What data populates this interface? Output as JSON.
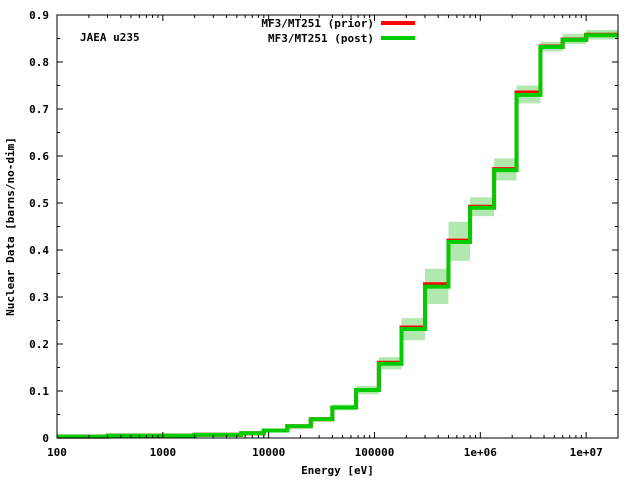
{
  "chart_data": {
    "type": "line",
    "step": true,
    "xscale": "log",
    "xlim": [
      100,
      20000000
    ],
    "ylim": [
      0,
      0.9
    ],
    "xlabel": "Energy [eV]",
    "ylabel": "Nuclear Data [barns/no-dim]",
    "annotation": "JAEA u235",
    "legend_position": "top-center",
    "grid": false,
    "x_ticks": [
      {
        "value": 100,
        "label": "100"
      },
      {
        "value": 1000,
        "label": "1000"
      },
      {
        "value": 10000,
        "label": "10000"
      },
      {
        "value": 100000,
        "label": "100000"
      },
      {
        "value": 1000000,
        "label": "1e+06"
      },
      {
        "value": 10000000,
        "label": "1e+07"
      }
    ],
    "y_ticks": [
      {
        "value": 0,
        "label": "0"
      },
      {
        "value": 0.1,
        "label": "0.1"
      },
      {
        "value": 0.2,
        "label": "0.2"
      },
      {
        "value": 0.3,
        "label": "0.3"
      },
      {
        "value": 0.4,
        "label": "0.4"
      },
      {
        "value": 0.5,
        "label": "0.5"
      },
      {
        "value": 0.6,
        "label": "0.6"
      },
      {
        "value": 0.7,
        "label": "0.7"
      },
      {
        "value": 0.8,
        "label": "0.8"
      },
      {
        "value": 0.9,
        "label": "0.9"
      }
    ],
    "bin_edges": [
      100,
      300,
      2000,
      5500,
      9000,
      15000,
      25000,
      40000,
      67000,
      110000,
      180000,
      300000,
      500000,
      800000,
      1350000,
      2200000,
      3700000,
      6000000,
      10000000,
      20000000
    ],
    "series": [
      {
        "name": "MF3/MT251 (prior)",
        "color": "#ff0000",
        "values": [
          0.003,
          0.005,
          0.007,
          0.01,
          0.016,
          0.025,
          0.04,
          0.065,
          0.102,
          0.16,
          0.235,
          0.327,
          0.42,
          0.492,
          0.572,
          0.735,
          0.833,
          0.848,
          0.858
        ]
      },
      {
        "name": "MF3/MT251 (post)",
        "color": "#00cc00",
        "values": [
          0.003,
          0.005,
          0.007,
          0.01,
          0.016,
          0.025,
          0.04,
          0.065,
          0.102,
          0.158,
          0.232,
          0.322,
          0.417,
          0.49,
          0.57,
          0.73,
          0.832,
          0.847,
          0.857
        ]
      }
    ],
    "uncertainty_band": {
      "color": "#b0e8b0",
      "low": [
        0.002,
        0.004,
        0.006,
        0.009,
        0.014,
        0.022,
        0.036,
        0.059,
        0.093,
        0.146,
        0.208,
        0.285,
        0.377,
        0.472,
        0.548,
        0.712,
        0.823,
        0.838,
        0.848
      ],
      "high": [
        0.004,
        0.006,
        0.008,
        0.011,
        0.018,
        0.028,
        0.044,
        0.071,
        0.111,
        0.172,
        0.255,
        0.36,
        0.46,
        0.512,
        0.595,
        0.75,
        0.843,
        0.86,
        0.868
      ]
    }
  }
}
